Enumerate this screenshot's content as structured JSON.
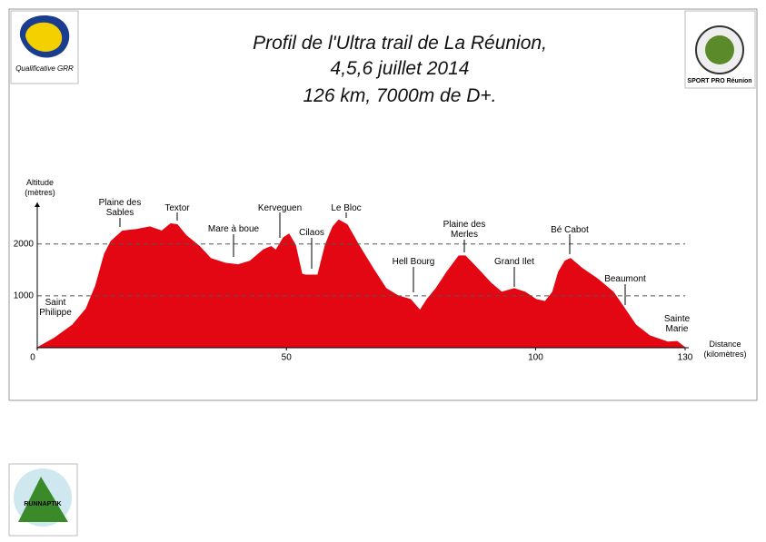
{
  "chart_data": {
    "type": "area",
    "title": "Profil de l'Ultra trail de La Réunion,",
    "subtitle": [
      "4,5,6 juillet 2014",
      "126 km, 7000m de D+."
    ],
    "y_label": "Altitude (mètres)",
    "x_label": "Distance (kilomètres)",
    "x": [
      0,
      3.5,
      7.1,
      9.8,
      11.7,
      13.5,
      14.8,
      17.1,
      19.9,
      22.6,
      25,
      26.8,
      28.1,
      29.9,
      32.6,
      34.8,
      37.7,
      40.3,
      42.7,
      45.4,
      46.9,
      47.9,
      49.4,
      50.5,
      51.8,
      53.1,
      53.8,
      56.3,
      57.8,
      59.3,
      60.5,
      62.2,
      64.5,
      67.3,
      70,
      72.4,
      74.9,
      76.8,
      78.2,
      80,
      82.2,
      84.6,
      85.9,
      88.2,
      91,
      93.2,
      95.7,
      97.9,
      100.1,
      101.9,
      103.4,
      104.6,
      105.9,
      107,
      109.2,
      112.5,
      115.6,
      117.9,
      120.1,
      122.9,
      126.5,
      128.4,
      130
    ],
    "series": [
      {
        "name": "Altitude",
        "color": "#e30613",
        "values": [
          0,
          190,
          440,
          750,
          1190,
          1810,
          2050,
          2250,
          2280,
          2330,
          2250,
          2390,
          2370,
          2160,
          1950,
          1720,
          1630,
          1600,
          1670,
          1890,
          1950,
          1880,
          2120,
          2190,
          1980,
          1420,
          1400,
          1400,
          1980,
          2330,
          2460,
          2370,
          1980,
          1540,
          1140,
          1000,
          930,
          720,
          930,
          1140,
          1460,
          1770,
          1770,
          1540,
          1250,
          1070,
          1140,
          1070,
          930,
          890,
          1070,
          1460,
          1670,
          1720,
          1540,
          1320,
          1070,
          750,
          440,
          230,
          110,
          120,
          0
        ]
      }
    ],
    "xlim": [
      0,
      130
    ],
    "xticks": [
      0,
      50,
      100,
      130
    ],
    "ylim": [
      0,
      2800
    ],
    "yticks": [
      1000,
      2000
    ],
    "grid": true,
    "annotations": [
      "Saint Philippe",
      "Plaine des Sables",
      "Textor",
      "Mare à boue",
      "Kerveguen",
      "Cilaos",
      "Le Bloc",
      "Hell Bourg",
      "Plaine des Merles",
      "Grand Ilet",
      "Bé Cabot",
      "Beaumont",
      "Sainte Marie"
    ],
    "logos": [
      "Qualificative GRR",
      "SPORT PRO Réunion",
      "RUNNAPTIK"
    ]
  }
}
